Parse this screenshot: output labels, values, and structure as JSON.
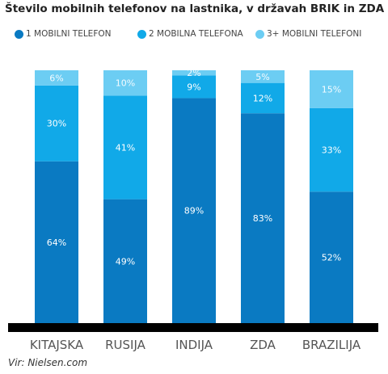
{
  "chart_data": {
    "type": "bar",
    "stacked": true,
    "percent_stacked": true,
    "title": "Število mobilnih telefonov na lastnika, v državah BRIK in ZDA",
    "categories": [
      "KITAJSKA",
      "RUSIJA",
      "INDIJA",
      "ZDA",
      "BRAZILIJA"
    ],
    "series": [
      {
        "name": "1 MOBILNI TELEFON",
        "color": "#0a7ac2",
        "values": [
          64,
          49,
          89,
          83,
          52
        ],
        "labels": [
          "64%",
          "49%",
          "89%",
          "83%",
          "52%"
        ]
      },
      {
        "name": "2 MOBILNA TELEFONA",
        "color": "#11a9e8",
        "values": [
          30,
          41,
          9,
          12,
          33
        ],
        "labels": [
          "30%",
          "41%",
          "9%",
          "12%",
          "33%"
        ]
      },
      {
        "name": "3+ MOBILNI TELEFONI",
        "color": "#6ccdf3",
        "values": [
          6,
          10,
          2,
          5,
          15
        ],
        "labels": [
          "6%",
          "10%",
          "2%",
          "5%",
          "15%"
        ]
      }
    ],
    "ylim": [
      0,
      100
    ],
    "grid": false,
    "legend_position": "top"
  },
  "source": "Vir: Nielsen.com"
}
